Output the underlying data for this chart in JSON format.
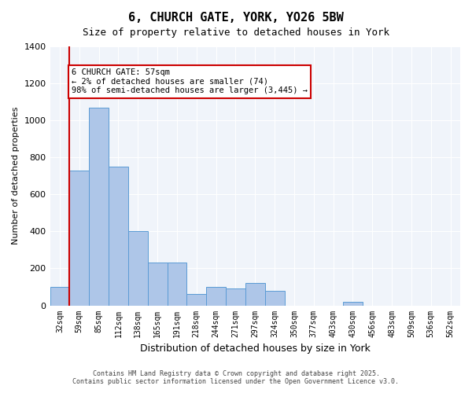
{
  "title": "6, CHURCH GATE, YORK, YO26 5BW",
  "subtitle": "Size of property relative to detached houses in York",
  "xlabel": "Distribution of detached houses by size in York",
  "ylabel": "Number of detached properties",
  "categories": [
    "32sqm",
    "59sqm",
    "85sqm",
    "112sqm",
    "138sqm",
    "165sqm",
    "191sqm",
    "218sqm",
    "244sqm",
    "271sqm",
    "297sqm",
    "324sqm",
    "350sqm",
    "377sqm",
    "403sqm",
    "430sqm",
    "456sqm",
    "483sqm",
    "509sqm",
    "536sqm",
    "562sqm"
  ],
  "values": [
    100,
    730,
    1070,
    750,
    400,
    230,
    230,
    60,
    100,
    90,
    120,
    80,
    0,
    0,
    0,
    20,
    0,
    0,
    0,
    0,
    0
  ],
  "bar_color": "#aec6e8",
  "bar_edge_color": "#5b9bd5",
  "vline_x": 1,
  "vline_color": "#cc0000",
  "annotation_text": "6 CHURCH GATE: 57sqm\n← 2% of detached houses are smaller (74)\n98% of semi-detached houses are larger (3,445) →",
  "annotation_box_color": "#cc0000",
  "ylim": [
    0,
    1400
  ],
  "yticks": [
    0,
    200,
    400,
    600,
    800,
    1000,
    1200,
    1400
  ],
  "background_color": "#f0f4fa",
  "footer_line1": "Contains HM Land Registry data © Crown copyright and database right 2025.",
  "footer_line2": "Contains public sector information licensed under the Open Government Licence v3.0."
}
